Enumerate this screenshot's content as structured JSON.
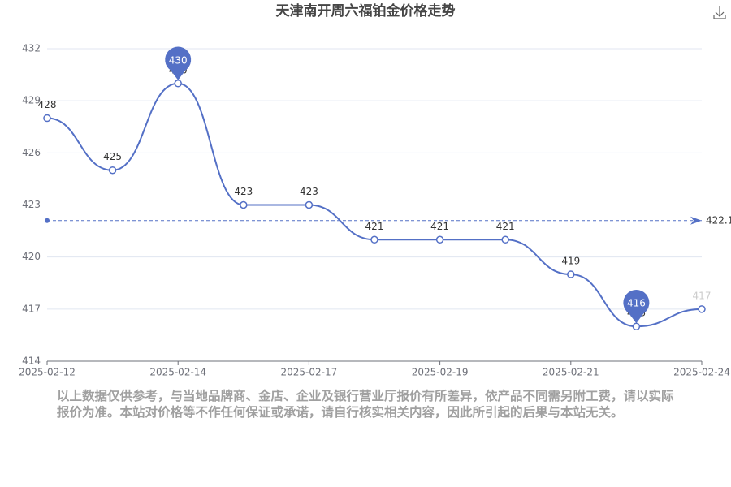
{
  "chart_data": {
    "type": "line",
    "title": "天津南开周六福铂金价格走势",
    "categories": [
      "2025-02-12",
      null,
      "2025-02-14",
      null,
      "2025-02-17",
      null,
      "2025-02-19",
      null,
      "2025-02-21",
      null,
      "2025-02-24"
    ],
    "values": [
      428,
      425,
      430,
      423,
      423,
      421,
      421,
      421,
      419,
      416,
      417
    ],
    "color": "#5470c6",
    "ylim": [
      414,
      432
    ],
    "yticks": [
      414,
      417,
      420,
      423,
      426,
      429,
      432
    ],
    "grid": true,
    "mark_points": [
      430,
      416
    ],
    "mean_line": 422.1,
    "note": "以上数据仅供参考，与当地品牌商、金店、企业及银行营业厅报价有所差异，依产品不同需另附工费，请以实际报价为准。本站对价格等不作任何保证或承诺，请自行核实相关内容，因此所引起的后果与本站无关。"
  }
}
